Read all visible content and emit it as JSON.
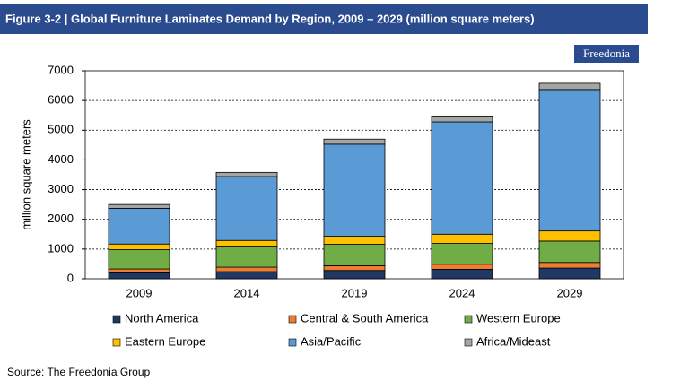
{
  "chart_data": {
    "type": "stacked_bar",
    "title": "Figure 3-2 | Global Furniture Laminates Demand by Region, 2009 – 2029 (million square meters)",
    "logo": "Freedonia",
    "y_label": "million square meters",
    "source": "Source: The Freedonia Group",
    "categories": [
      "2009",
      "2014",
      "2019",
      "2024",
      "2029"
    ],
    "series": [
      {
        "name": "North America",
        "color": "#1f3864",
        "values": [
          200,
          240,
          280,
          320,
          360
        ]
      },
      {
        "name": "Central & South America",
        "color": "#ed7d31",
        "values": [
          130,
          150,
          160,
          170,
          190
        ]
      },
      {
        "name": "Western Europe",
        "color": "#70ad47",
        "values": [
          650,
          680,
          720,
          700,
          720
        ]
      },
      {
        "name": "Eastern Europe",
        "color": "#ffc000",
        "values": [
          190,
          220,
          270,
          310,
          340
        ]
      },
      {
        "name": "Asia/Pacific",
        "color": "#5b9bd5",
        "values": [
          1200,
          2150,
          3100,
          3780,
          4760
        ]
      },
      {
        "name": "Africa/Mideast",
        "color": "#a5a5a5",
        "values": [
          130,
          140,
          170,
          200,
          210
        ]
      }
    ],
    "ylim": [
      0,
      7000
    ],
    "yticks": [
      0,
      1000,
      2000,
      3000,
      4000,
      5000,
      6000,
      7000
    ],
    "grid": true
  }
}
